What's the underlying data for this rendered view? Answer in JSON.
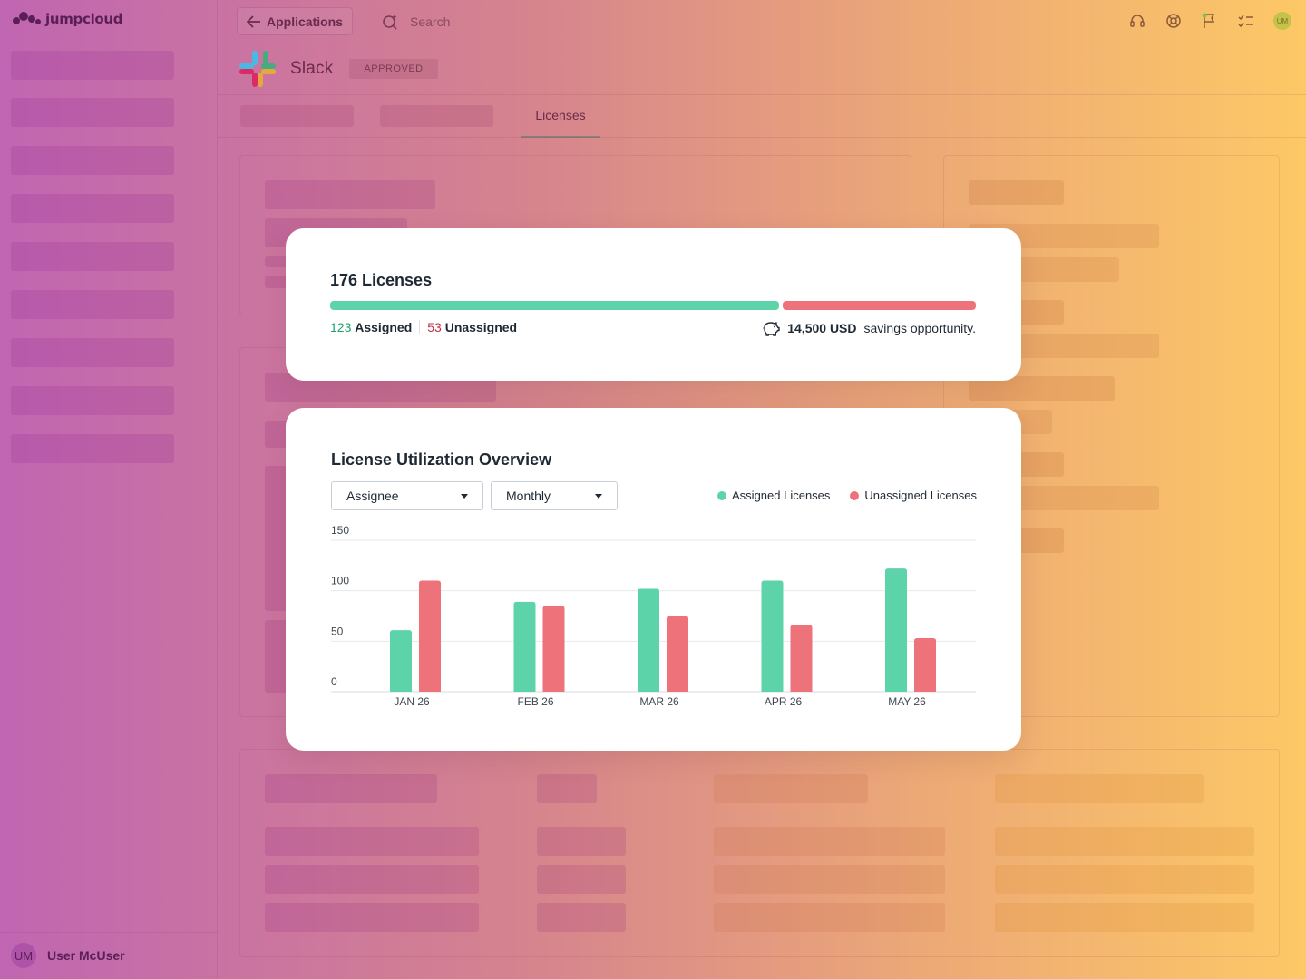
{
  "colors": {
    "assigned": "#5dd3aa",
    "unassigned": "#ee727a",
    "assigned_text": "#1aa36a",
    "unassigned_text": "#c0304a"
  },
  "sidebar": {
    "brand": "jumpcloud",
    "user_initials": "UM",
    "user_name": "User McUser"
  },
  "topbar": {
    "back_label": "Applications",
    "search_placeholder": "Search",
    "avatar_initials": "UM",
    "icons": [
      "headset-icon",
      "help-wheel-icon",
      "flag-icon",
      "checklist-icon"
    ]
  },
  "app": {
    "name": "Slack",
    "status": "APPROVED",
    "active_tab": "Licenses"
  },
  "licenses": {
    "total_label": "176 Licenses",
    "total": 176,
    "assigned": 123,
    "assigned_count": "123",
    "assigned_label": "Assigned",
    "unassigned": 53,
    "unassigned_count": "53",
    "unassigned_label": "Unassigned",
    "savings_amount": "14,500 USD",
    "savings_text": "savings opportunity."
  },
  "utilization": {
    "title": "License Utilization Overview",
    "filter_group": "Assignee",
    "filter_period": "Monthly",
    "legend_assigned": "Assigned Licenses",
    "legend_unassigned": "Unassigned Licenses"
  },
  "chart_data": {
    "type": "bar",
    "categories": [
      "JAN 26",
      "FEB 26",
      "MAR 26",
      "APR 26",
      "MAY 26"
    ],
    "series": [
      {
        "name": "Assigned Licenses",
        "values": [
          61,
          89,
          102,
          110,
          122
        ]
      },
      {
        "name": "Unassigned Licenses",
        "values": [
          110,
          85,
          75,
          66,
          53
        ]
      }
    ],
    "ylim": [
      0,
      150
    ],
    "yticks": [
      0,
      50,
      100,
      150
    ],
    "grid": true,
    "legend": "top-right"
  }
}
